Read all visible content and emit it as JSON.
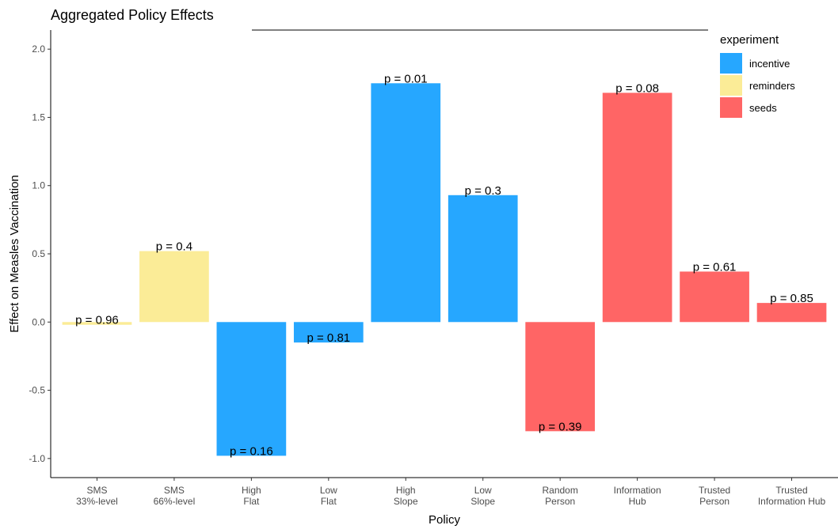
{
  "chart_data": {
    "type": "bar",
    "title": "Aggregated Policy Effects",
    "xlabel": "Policy",
    "ylabel": "Effect on Measles Vaccination",
    "ylim": [
      -1.14,
      2.14
    ],
    "yticks": [
      "2.0",
      "1.5",
      "1.0",
      "0.5",
      "0.0",
      "-0.5",
      "-1.0"
    ],
    "ytick_values": [
      2.0,
      1.5,
      1.0,
      0.5,
      0.0,
      -0.5,
      -1.0
    ],
    "grid": false,
    "legend": {
      "title": "experiment",
      "placement": "top-right",
      "entries": [
        {
          "label": "incentive",
          "color": "#26a7ff"
        },
        {
          "label": "reminders",
          "color": "#fbec97"
        },
        {
          "label": "seeds",
          "color": "#ff6565"
        }
      ]
    },
    "bars": [
      {
        "category": [
          "SMS",
          "33%-level"
        ],
        "value": -0.02,
        "group": "reminders",
        "label": "p = 0.96"
      },
      {
        "category": [
          "SMS",
          "66%-level"
        ],
        "value": 0.52,
        "group": "reminders",
        "label": "p = 0.4"
      },
      {
        "category": [
          "High",
          "Flat"
        ],
        "value": -0.98,
        "group": "incentive",
        "label": "p = 0.16"
      },
      {
        "category": [
          "Low",
          "Flat"
        ],
        "value": -0.15,
        "group": "incentive",
        "label": "p = 0.81"
      },
      {
        "category": [
          "High",
          "Slope"
        ],
        "value": 1.75,
        "group": "incentive",
        "label": "p = 0.01"
      },
      {
        "category": [
          "Low",
          "Slope"
        ],
        "value": 0.93,
        "group": "incentive",
        "label": "p = 0.3"
      },
      {
        "category": [
          "Random",
          "Person"
        ],
        "value": -0.8,
        "group": "seeds",
        "label": "p = 0.39"
      },
      {
        "category": [
          "Information",
          "Hub"
        ],
        "value": 1.68,
        "group": "seeds",
        "label": "p = 0.08"
      },
      {
        "category": [
          "Trusted",
          "Person"
        ],
        "value": 0.37,
        "group": "seeds",
        "label": "p = 0.61"
      },
      {
        "category": [
          "Trusted",
          "Information Hub"
        ],
        "value": 0.14,
        "group": "seeds",
        "label": "p = 0.85"
      }
    ]
  }
}
